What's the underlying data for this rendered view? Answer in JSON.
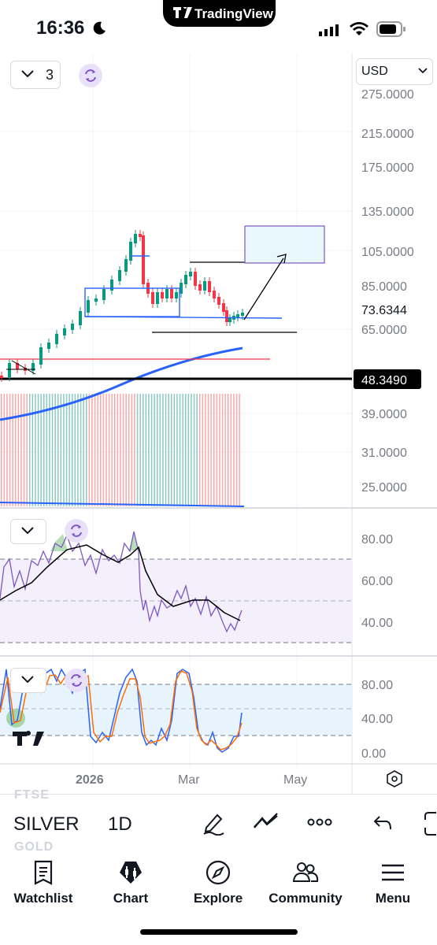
{
  "status_bar": {
    "time": "16:36",
    "app_pill": "TradingView"
  },
  "chart": {
    "indicator_count": "3",
    "currency": "USD",
    "price_axis": [
      "275.0000",
      "215.0000",
      "175.0000",
      "135.0000",
      "105.0000",
      "85.0000",
      "65.0000",
      "39.0000",
      "31.0000",
      "25.0000"
    ],
    "last_price": "73.6344",
    "marker_price": "48.3490",
    "rsi_axis": [
      "80.00",
      "60.00",
      "40.00"
    ],
    "stoch_axis": [
      "80.00",
      "40.00",
      "0.00"
    ],
    "time_axis": [
      "2026",
      "Mar",
      "May"
    ],
    "colors": {
      "accent": "#2962ff",
      "up": "#089981",
      "down": "#f23645",
      "rsi": "#7e57c2",
      "stoch_k": "#2962ff",
      "stoch_d": "#ff6d00"
    }
  },
  "toolbar": {
    "ghost_above": "FTSE",
    "ghost_below": "GOLD",
    "symbol": "SILVER",
    "interval": "1D",
    "icons": [
      "drawing-pen-icon",
      "indicators-icon",
      "more-icon",
      "undo-icon"
    ]
  },
  "tabs": [
    {
      "label": "Watchlist",
      "icon": "watchlist-icon"
    },
    {
      "label": "Chart",
      "icon": "chart-icon"
    },
    {
      "label": "Explore",
      "icon": "compass-icon"
    },
    {
      "label": "Community",
      "icon": "community-icon"
    },
    {
      "label": "Menu",
      "icon": "menu-icon"
    }
  ]
}
